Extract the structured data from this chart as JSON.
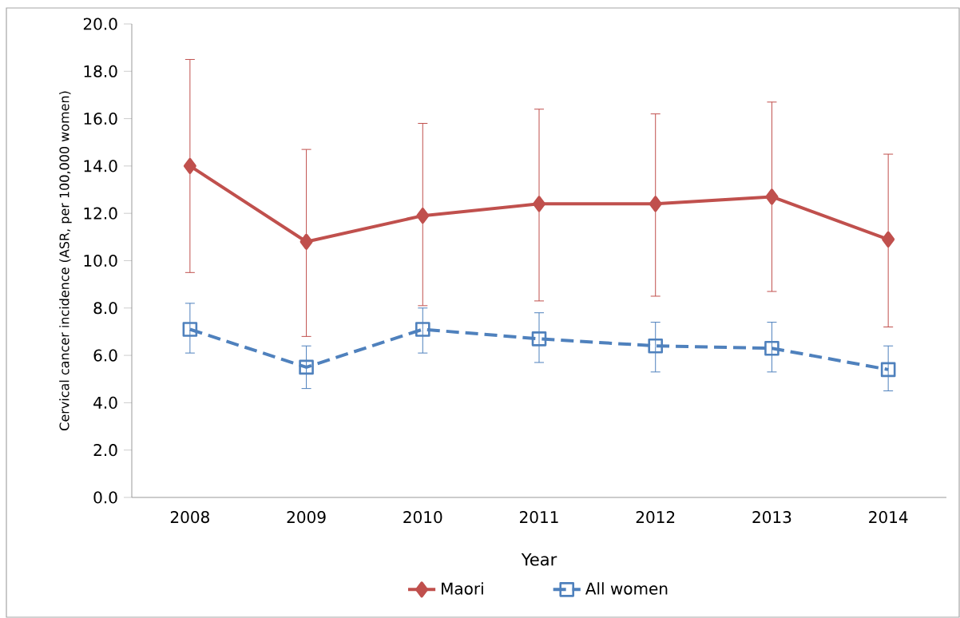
{
  "chart_data": {
    "type": "line",
    "xlabel": "Year",
    "ylabel": "Cervical cancer incidence (ASR, per 100,000 women)",
    "categories": [
      "2008",
      "2009",
      "2010",
      "2011",
      "2012",
      "2013",
      "2014"
    ],
    "ylim": [
      0,
      20
    ],
    "yticks": [
      {
        "value": 0,
        "label": "0.0"
      },
      {
        "value": 2,
        "label": "2.0"
      },
      {
        "value": 4,
        "label": "4.0"
      },
      {
        "value": 6,
        "label": "6.0"
      },
      {
        "value": 8,
        "label": "8.0"
      },
      {
        "value": 10,
        "label": "10.0"
      },
      {
        "value": 12,
        "label": "12.0"
      },
      {
        "value": 14,
        "label": "14.0"
      },
      {
        "value": 16,
        "label": "16.0"
      },
      {
        "value": 18,
        "label": "18.0"
      },
      {
        "value": 20,
        "label": "20.0"
      }
    ],
    "grid": false,
    "legend": "bottom",
    "series": [
      {
        "name": "Maori",
        "color": "#c0504d",
        "marker": "diamond",
        "line_style": "solid",
        "values": [
          14.0,
          10.8,
          11.9,
          12.4,
          12.4,
          12.7,
          10.9
        ],
        "errors": [
          [
            9.5,
            18.5
          ],
          [
            6.8,
            14.7
          ],
          [
            8.1,
            15.8
          ],
          [
            8.3,
            16.4
          ],
          [
            8.5,
            16.2
          ],
          [
            8.7,
            16.7
          ],
          [
            7.2,
            14.5
          ]
        ]
      },
      {
        "name": "All women",
        "color": "#4f81bd",
        "marker": "square",
        "line_style": "dashed",
        "values": [
          7.1,
          5.5,
          7.1,
          6.7,
          6.4,
          6.3,
          5.4
        ],
        "errors": [
          [
            6.1,
            8.2
          ],
          [
            4.6,
            6.4
          ],
          [
            6.1,
            8.0
          ],
          [
            5.7,
            7.8
          ],
          [
            5.3,
            7.4
          ],
          [
            5.3,
            7.4
          ],
          [
            4.5,
            6.4
          ]
        ]
      }
    ]
  }
}
